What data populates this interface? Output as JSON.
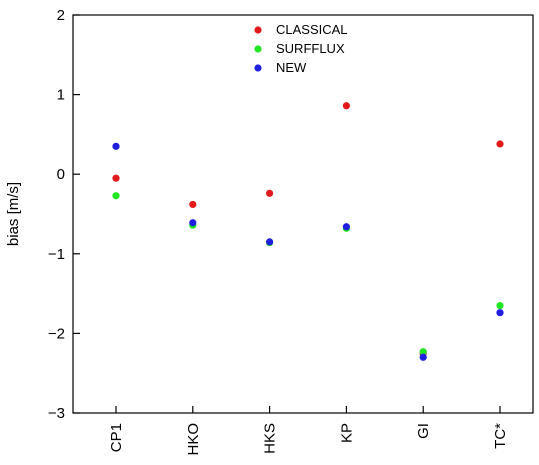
{
  "chart_data": {
    "type": "scatter",
    "title": "",
    "xlabel": "",
    "ylabel": "bias [m/s]",
    "ylim": [
      -3,
      2
    ],
    "yticks": [
      2,
      1,
      0,
      -1,
      -2,
      -3
    ],
    "ytick_labels": [
      "2",
      "1",
      "0",
      "−1",
      "−2",
      "−3"
    ],
    "categories": [
      "CP1",
      "HKO",
      "HKS",
      "KP",
      "GI",
      "TC*"
    ],
    "grid": false,
    "legend_position": "top-center",
    "series": [
      {
        "name": "CLASSICAL",
        "color": "#e31a1c",
        "values": [
          -0.05,
          -0.38,
          -0.24,
          0.86,
          -2.25,
          0.38
        ]
      },
      {
        "name": "SURFFLUX",
        "color": "#22e622",
        "values": [
          -0.27,
          -0.64,
          -0.86,
          -0.68,
          -2.23,
          -1.65
        ]
      },
      {
        "name": "NEW",
        "color": "#1f1fe0",
        "values": [
          0.35,
          -0.61,
          -0.85,
          -0.66,
          -2.3,
          -1.74
        ]
      }
    ]
  }
}
